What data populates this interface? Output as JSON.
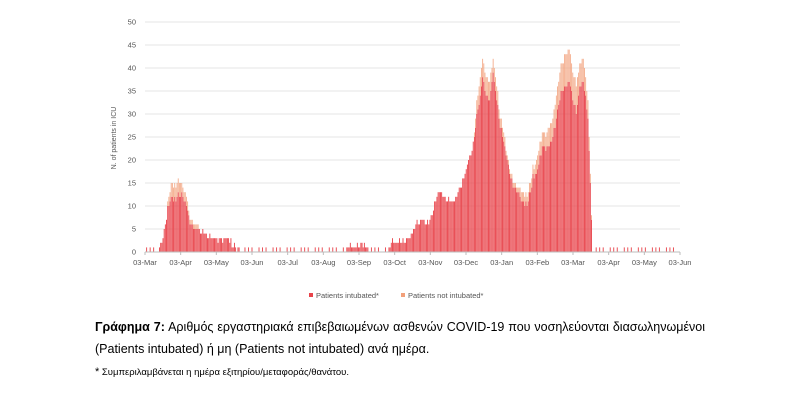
{
  "caption": {
    "label": "Γράφημα 7:",
    "text": " Αριθμός εργαστηριακά επιβεβαιωμένων ασθενών COVID-19 που νοσηλεύονται διασωληνωμένοι (Patients intubated) ή μη (Patients not intubated) ανά ημέρα."
  },
  "footnote": {
    "mark": "*",
    "text": " Συμπεριλαμβάνεται η ημέρα εξιτηρίου/μεταφοράς/θανάτου."
  },
  "chart_data": {
    "type": "bar",
    "stacked": true,
    "title": "",
    "xlabel": "",
    "ylabel": "N. of patients in ICU",
    "ylim": [
      0,
      50
    ],
    "yticks": [
      "0",
      "5",
      "10",
      "15",
      "20",
      "25",
      "30",
      "35",
      "40",
      "45",
      "50"
    ],
    "xticks": [
      "03-Mar",
      "03-Apr",
      "03-May",
      "03-Jun",
      "03-Jul",
      "03-Aug",
      "03-Sep",
      "03-Oct",
      "03-Nov",
      "03-Dec",
      "03-Jan",
      "03-Feb",
      "03-Mar",
      "03-Apr",
      "03-May",
      "03-Jun"
    ],
    "grid": true,
    "legend": "bottom",
    "colors": {
      "intubated": "#e8434a",
      "not_intubated": "#f2a07a"
    },
    "series": [
      {
        "name": "Patients intubated*",
        "anchors": [
          [
            0,
            0
          ],
          [
            10,
            0
          ],
          [
            13,
            1
          ],
          [
            16,
            4
          ],
          [
            19,
            9
          ],
          [
            22,
            12
          ],
          [
            25,
            11
          ],
          [
            28,
            12
          ],
          [
            31,
            12
          ],
          [
            34,
            11
          ],
          [
            36,
            9
          ],
          [
            38,
            6
          ],
          [
            42,
            5
          ],
          [
            46,
            4.5
          ],
          [
            50,
            4
          ],
          [
            55,
            3
          ],
          [
            60,
            2.5
          ],
          [
            70,
            3
          ],
          [
            76,
            1
          ],
          [
            85,
            0
          ],
          [
            170,
            0
          ],
          [
            173,
            1
          ],
          [
            182,
            1
          ],
          [
            185,
            2
          ],
          [
            188,
            1
          ],
          [
            192,
            0
          ],
          [
            207,
            0
          ],
          [
            210,
            2
          ],
          [
            215,
            2
          ],
          [
            222,
            2
          ],
          [
            228,
            4
          ],
          [
            232,
            6
          ],
          [
            236,
            7
          ],
          [
            241,
            6
          ],
          [
            246,
            9
          ],
          [
            250,
            13
          ],
          [
            254,
            12
          ],
          [
            258,
            11
          ],
          [
            263,
            11
          ],
          [
            268,
            13
          ],
          [
            272,
            16
          ],
          [
            276,
            20
          ],
          [
            280,
            23
          ],
          [
            283,
            29
          ],
          [
            286,
            34
          ],
          [
            288,
            38
          ],
          [
            292,
            33
          ],
          [
            295,
            34
          ],
          [
            297,
            39
          ],
          [
            300,
            33
          ],
          [
            303,
            27
          ],
          [
            306,
            24
          ],
          [
            309,
            20
          ],
          [
            312,
            16
          ],
          [
            315,
            14
          ],
          [
            318,
            13
          ],
          [
            321,
            11
          ],
          [
            325,
            10
          ],
          [
            328,
            12
          ],
          [
            331,
            16
          ],
          [
            334,
            17
          ],
          [
            337,
            20
          ],
          [
            339,
            23
          ],
          [
            343,
            22
          ],
          [
            347,
            24
          ],
          [
            350,
            27
          ],
          [
            353,
            32
          ],
          [
            356,
            35
          ],
          [
            359,
            36
          ],
          [
            362,
            37
          ],
          [
            365,
            33
          ],
          [
            368,
            30
          ],
          [
            371,
            36
          ],
          [
            374,
            37
          ],
          [
            376,
            33
          ],
          [
            378,
            29
          ],
          [
            382,
            0
          ]
        ]
      },
      {
        "name": "Patients not intubated*",
        "anchors": [
          [
            0,
            0
          ],
          [
            18,
            0
          ],
          [
            20,
            2
          ],
          [
            24,
            3
          ],
          [
            28,
            3
          ],
          [
            32,
            2
          ],
          [
            36,
            1.5
          ],
          [
            40,
            1
          ],
          [
            45,
            0.5
          ],
          [
            55,
            0
          ],
          [
            280,
            0
          ],
          [
            283,
            3
          ],
          [
            286,
            4
          ],
          [
            292,
            4
          ],
          [
            298,
            3
          ],
          [
            304,
            2
          ],
          [
            310,
            1
          ],
          [
            320,
            1.5
          ],
          [
            328,
            2
          ],
          [
            334,
            2.5
          ],
          [
            340,
            3
          ],
          [
            347,
            4
          ],
          [
            352,
            5
          ],
          [
            356,
            6
          ],
          [
            360,
            7
          ],
          [
            366,
            6
          ],
          [
            372,
            5
          ],
          [
            378,
            4
          ],
          [
            382,
            0
          ]
        ]
      }
    ]
  }
}
